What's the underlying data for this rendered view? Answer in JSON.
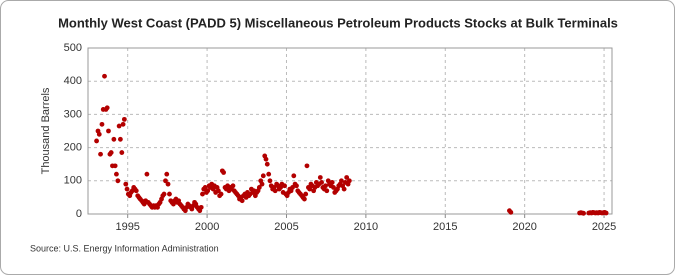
{
  "chart_data": {
    "type": "scatter",
    "title": "Monthly West Coast (PADD 5) Miscellaneous Petroleum Products Stocks at Bulk Terminals",
    "y_label": "Thousand Barrels",
    "source": "Source: U.S. Energy Information Administration",
    "color": "#b30000",
    "xlim": [
      1992.5,
      2025.5
    ],
    "xticks": [
      1995,
      2000,
      2005,
      2010,
      2015,
      2020,
      2025
    ],
    "ylim": [
      0,
      500
    ],
    "yticks": [
      0,
      100,
      200,
      300,
      400,
      500
    ],
    "grid": true,
    "x": [
      1993.04,
      1993.13,
      1993.21,
      1993.29,
      1993.38,
      1993.46,
      1993.54,
      1993.63,
      1993.71,
      1993.79,
      1993.88,
      1993.96,
      1994.04,
      1994.13,
      1994.21,
      1994.29,
      1994.38,
      1994.46,
      1994.54,
      1994.63,
      1994.71,
      1994.79,
      1994.88,
      1994.96,
      1995.04,
      1995.13,
      1995.21,
      1995.29,
      1995.38,
      1995.46,
      1995.54,
      1995.63,
      1995.71,
      1995.79,
      1995.88,
      1995.96,
      1996.04,
      1996.13,
      1996.21,
      1996.29,
      1996.38,
      1996.46,
      1996.54,
      1996.63,
      1996.71,
      1996.79,
      1996.88,
      1996.96,
      1997.04,
      1997.13,
      1997.21,
      1997.29,
      1997.38,
      1997.46,
      1997.54,
      1997.63,
      1997.71,
      1997.79,
      1997.88,
      1997.96,
      1998.04,
      1998.13,
      1998.21,
      1998.29,
      1998.38,
      1998.46,
      1998.54,
      1998.63,
      1998.71,
      1998.79,
      1998.88,
      1998.96,
      1999.04,
      1999.13,
      1999.21,
      1999.29,
      1999.38,
      1999.46,
      1999.54,
      1999.63,
      1999.71,
      1999.79,
      1999.88,
      1999.96,
      2000.04,
      2000.13,
      2000.21,
      2000.29,
      2000.38,
      2000.46,
      2000.54,
      2000.63,
      2000.71,
      2000.79,
      2000.88,
      2000.96,
      2001.04,
      2001.13,
      2001.21,
      2001.29,
      2001.38,
      2001.46,
      2001.54,
      2001.63,
      2001.71,
      2001.79,
      2001.88,
      2001.96,
      2002.04,
      2002.13,
      2002.21,
      2002.29,
      2002.38,
      2002.46,
      2002.54,
      2002.63,
      2002.71,
      2002.79,
      2002.88,
      2002.96,
      2003.04,
      2003.13,
      2003.21,
      2003.29,
      2003.38,
      2003.46,
      2003.54,
      2003.63,
      2003.71,
      2003.79,
      2003.88,
      2003.96,
      2004.04,
      2004.13,
      2004.21,
      2004.29,
      2004.38,
      2004.46,
      2004.54,
      2004.63,
      2004.71,
      2004.79,
      2004.88,
      2004.96,
      2005.04,
      2005.13,
      2005.21,
      2005.29,
      2005.38,
      2005.46,
      2005.54,
      2005.63,
      2005.71,
      2005.79,
      2005.88,
      2005.96,
      2006.04,
      2006.13,
      2006.21,
      2006.29,
      2006.38,
      2006.46,
      2006.54,
      2006.63,
      2006.71,
      2006.79,
      2006.88,
      2006.96,
      2007.04,
      2007.13,
      2007.21,
      2007.29,
      2007.38,
      2007.46,
      2007.54,
      2007.63,
      2007.71,
      2007.79,
      2007.88,
      2007.96,
      2008.04,
      2008.13,
      2008.21,
      2008.29,
      2008.38,
      2008.46,
      2008.54,
      2008.63,
      2008.71,
      2008.79,
      2008.88,
      2008.96,
      2019.04,
      2019.13,
      2023.46,
      2023.54,
      2023.63,
      2023.71,
      2024.04,
      2024.13,
      2024.21,
      2024.29,
      2024.38,
      2024.46,
      2024.54,
      2024.63,
      2024.71,
      2024.79,
      2024.88,
      2024.96,
      2025.04,
      2025.13
    ],
    "values": [
      220,
      250,
      240,
      180,
      270,
      315,
      415,
      315,
      320,
      250,
      180,
      185,
      145,
      225,
      145,
      120,
      100,
      265,
      225,
      185,
      270,
      285,
      90,
      75,
      60,
      55,
      65,
      70,
      80,
      75,
      70,
      55,
      50,
      45,
      40,
      35,
      30,
      40,
      120,
      35,
      30,
      25,
      20,
      25,
      20,
      25,
      20,
      30,
      35,
      45,
      55,
      60,
      100,
      120,
      90,
      60,
      40,
      35,
      30,
      40,
      45,
      35,
      40,
      30,
      25,
      20,
      15,
      10,
      20,
      30,
      25,
      20,
      15,
      25,
      35,
      30,
      20,
      15,
      10,
      20,
      60,
      75,
      80,
      65,
      70,
      85,
      80,
      90,
      75,
      85,
      65,
      80,
      70,
      55,
      60,
      130,
      125,
      80,
      75,
      85,
      70,
      80,
      75,
      85,
      70,
      65,
      60,
      55,
      45,
      50,
      40,
      55,
      60,
      50,
      65,
      55,
      60,
      75,
      65,
      70,
      55,
      65,
      70,
      80,
      100,
      90,
      115,
      175,
      165,
      150,
      120,
      100,
      85,
      75,
      80,
      70,
      90,
      85,
      75,
      80,
      90,
      65,
      85,
      60,
      55,
      65,
      75,
      70,
      80,
      115,
      90,
      85,
      70,
      65,
      60,
      55,
      50,
      45,
      60,
      145,
      80,
      75,
      90,
      85,
      70,
      80,
      95,
      85,
      90,
      110,
      95,
      80,
      75,
      85,
      70,
      100,
      90,
      85,
      95,
      80,
      65,
      70,
      75,
      85,
      90,
      100,
      85,
      75,
      95,
      110,
      90,
      100,
      10,
      5,
      3,
      4,
      3,
      2,
      3,
      4,
      3,
      5,
      4,
      3,
      4,
      3,
      5,
      4,
      3,
      4,
      5,
      3
    ]
  }
}
